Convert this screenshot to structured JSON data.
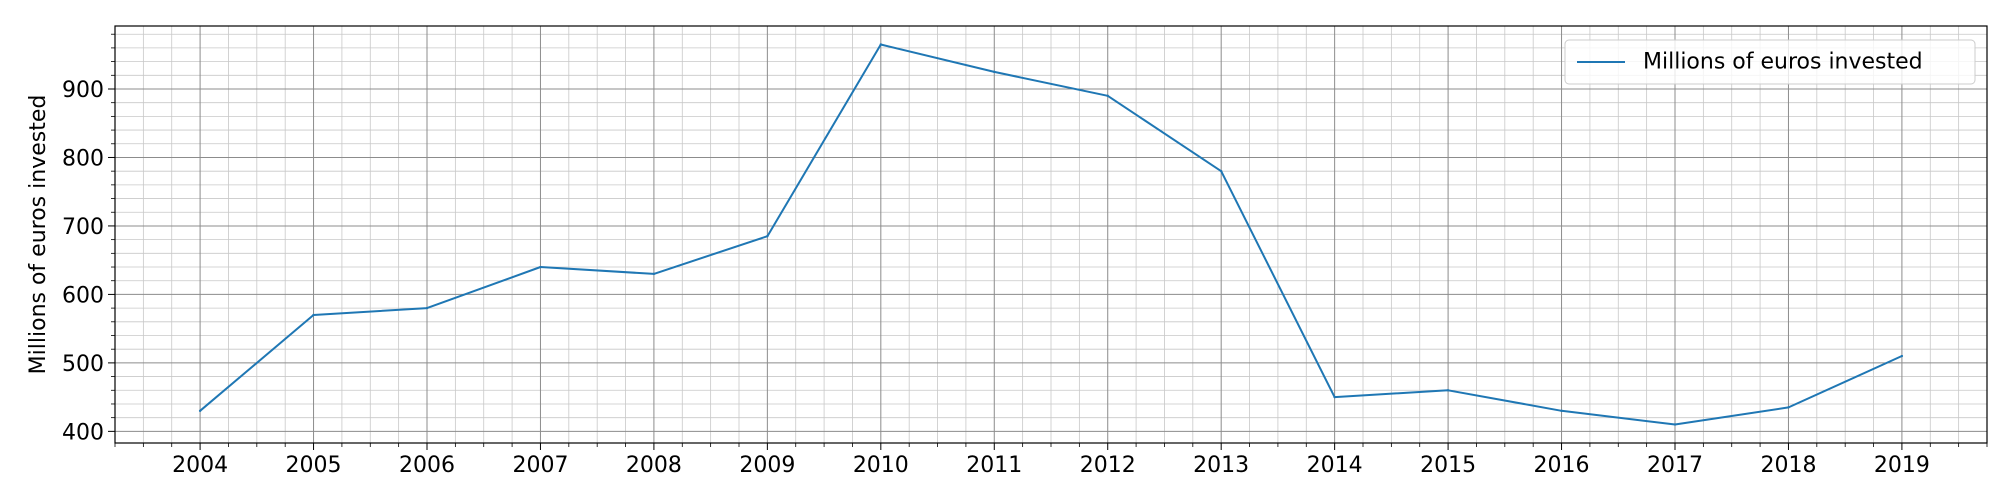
{
  "chart_data": {
    "type": "line",
    "title": "",
    "xlabel": "",
    "ylabel": "Millions of euros invested",
    "x": [
      2004,
      2005,
      2006,
      2007,
      2008,
      2009,
      2010,
      2011,
      2012,
      2013,
      2014,
      2015,
      2016,
      2017,
      2018,
      2019
    ],
    "series": [
      {
        "name": "Millions of euros invested",
        "values": [
          430,
          570,
          580,
          640,
          630,
          685,
          965,
          925,
          890,
          780,
          450,
          460,
          430,
          410,
          435,
          510
        ],
        "color": "#1f77b4"
      }
    ],
    "xlim": [
      2003.25,
      2019.75
    ],
    "ylim": [
      383,
      992
    ],
    "xticks": [
      2004,
      2005,
      2006,
      2007,
      2008,
      2009,
      2010,
      2011,
      2012,
      2013,
      2014,
      2015,
      2016,
      2017,
      2018,
      2019
    ],
    "yticks": [
      400,
      500,
      600,
      700,
      800,
      900
    ],
    "grid": "major and minor",
    "legend": "top-right"
  }
}
